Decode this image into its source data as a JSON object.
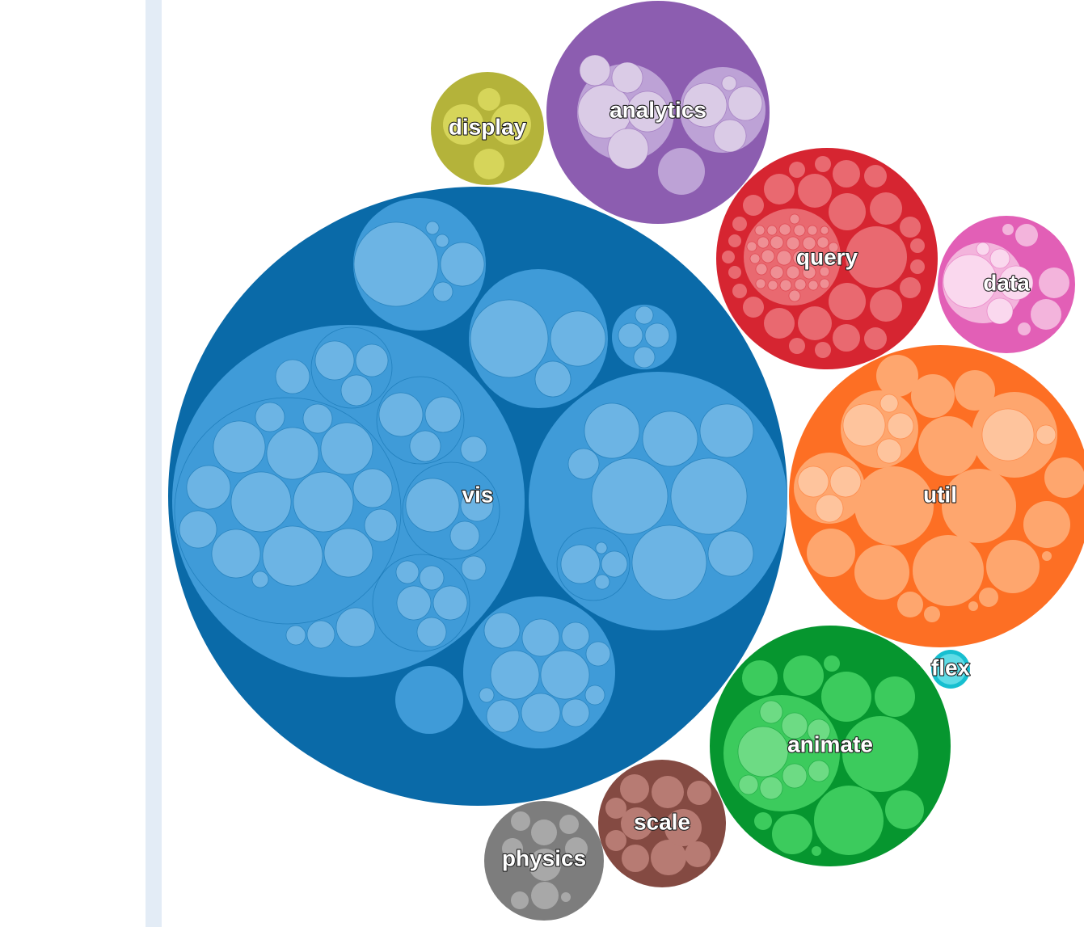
{
  "diagram": {
    "type": "circle-packing",
    "packages": [
      {
        "id": "vis",
        "label": "vis",
        "color": "#0a6aa8",
        "child_color": "#3f9bd8",
        "leaf_color": "#6cb4e4"
      },
      {
        "id": "analytics",
        "label": "analytics",
        "color": "#8c5db0",
        "child_color": "#bda2d6",
        "leaf_color": "#dacbe6"
      },
      {
        "id": "display",
        "label": "display",
        "color": "#b4b33a",
        "child_color": "#d6d55a",
        "leaf_color": "#e3e27a"
      },
      {
        "id": "query",
        "label": "query",
        "color": "#d62531",
        "child_color": "#e96970",
        "leaf_color": "#ef8f94"
      },
      {
        "id": "data",
        "label": "data",
        "color": "#e25fb6",
        "child_color": "#f3b4dc",
        "leaf_color": "#fad8ee"
      },
      {
        "id": "util",
        "label": "util",
        "color": "#fd6f24",
        "child_color": "#fea66e",
        "leaf_color": "#fec49d"
      },
      {
        "id": "flex",
        "label": "flex",
        "color": "#17bfd0",
        "child_color": "#5fdce6",
        "leaf_color": "#9be9ef"
      },
      {
        "id": "animate",
        "label": "animate",
        "color": "#06962f",
        "child_color": "#3ccb5d",
        "leaf_color": "#6ddb84"
      },
      {
        "id": "scale",
        "label": "scale",
        "color": "#844a42",
        "child_color": "#b77b73",
        "leaf_color": "#cfa19b"
      },
      {
        "id": "physics",
        "label": "physics",
        "color": "#7d7d7d",
        "child_color": "#a8a8a8",
        "leaf_color": "#c4c4c4"
      }
    ]
  }
}
